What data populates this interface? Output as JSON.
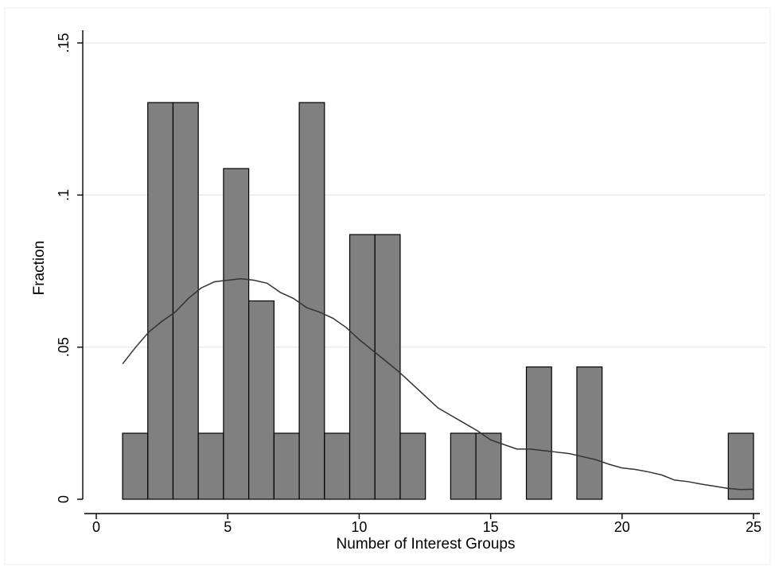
{
  "chart_data": {
    "type": "bar",
    "title": "",
    "xlabel": "Number of Interest Groups",
    "ylabel": "Fraction",
    "xlim": [
      0,
      25
    ],
    "ylim": [
      0,
      0.15
    ],
    "x_ticks": [
      {
        "value": 0,
        "label": "0"
      },
      {
        "value": 5,
        "label": "5"
      },
      {
        "value": 10,
        "label": "10"
      },
      {
        "value": 15,
        "label": "15"
      },
      {
        "value": 20,
        "label": "20"
      },
      {
        "value": 25,
        "label": "25"
      }
    ],
    "y_ticks": [
      {
        "value": 0,
        "label": "0"
      },
      {
        "value": 0.05,
        "label": ".05"
      },
      {
        "value": 0.1,
        "label": ".1"
      },
      {
        "value": 0.15,
        "label": ".15"
      }
    ],
    "grid": true,
    "bins": [
      {
        "x0": 1.0,
        "x1": 1.96,
        "value": 0.0217
      },
      {
        "x0": 1.96,
        "x1": 2.92,
        "value": 0.1304
      },
      {
        "x0": 2.92,
        "x1": 3.88,
        "value": 0.1304
      },
      {
        "x0": 3.88,
        "x1": 4.84,
        "value": 0.0217
      },
      {
        "x0": 4.84,
        "x1": 5.8,
        "value": 0.1087
      },
      {
        "x0": 5.8,
        "x1": 6.76,
        "value": 0.0652
      },
      {
        "x0": 6.76,
        "x1": 7.72,
        "value": 0.0217
      },
      {
        "x0": 7.72,
        "x1": 8.68,
        "value": 0.1304
      },
      {
        "x0": 8.68,
        "x1": 9.64,
        "value": 0.0217
      },
      {
        "x0": 9.64,
        "x1": 10.6,
        "value": 0.087
      },
      {
        "x0": 10.6,
        "x1": 11.56,
        "value": 0.087
      },
      {
        "x0": 11.56,
        "x1": 12.52,
        "value": 0.0217
      },
      {
        "x0": 13.48,
        "x1": 14.44,
        "value": 0.0217
      },
      {
        "x0": 14.44,
        "x1": 15.4,
        "value": 0.0217
      },
      {
        "x0": 16.36,
        "x1": 17.32,
        "value": 0.0435
      },
      {
        "x0": 18.28,
        "x1": 19.24,
        "value": 0.0435
      },
      {
        "x0": 24.04,
        "x1": 25.0,
        "value": 0.0217
      }
    ],
    "density_curve": {
      "x": [
        1,
        1.5,
        2,
        2.5,
        3,
        3.5,
        4,
        4.5,
        5,
        5.5,
        6,
        6.5,
        7,
        7.5,
        8,
        8.5,
        9,
        9.5,
        10,
        10.5,
        11,
        11.5,
        12,
        12.5,
        13,
        13.5,
        14,
        14.5,
        15,
        15.5,
        16,
        16.5,
        17,
        17.5,
        18,
        18.5,
        19,
        19.5,
        20,
        20.5,
        21,
        21.5,
        22,
        22.5,
        23,
        23.5,
        24,
        24.5,
        25
      ],
      "y": [
        0.0445,
        0.05,
        0.055,
        0.0585,
        0.0615,
        0.066,
        0.0695,
        0.0715,
        0.072,
        0.0725,
        0.072,
        0.071,
        0.068,
        0.066,
        0.063,
        0.0615,
        0.0595,
        0.0565,
        0.0525,
        0.049,
        0.0455,
        0.042,
        0.038,
        0.034,
        0.03,
        0.0275,
        0.025,
        0.0225,
        0.0195,
        0.018,
        0.0165,
        0.0165,
        0.016,
        0.0155,
        0.015,
        0.014,
        0.013,
        0.0115,
        0.0103,
        0.0098,
        0.009,
        0.008,
        0.0063,
        0.0058,
        0.005,
        0.0043,
        0.0036,
        0.0032,
        0.0033
      ]
    }
  },
  "colors": {
    "bar_fill": "#808080",
    "bar_stroke": "#000000",
    "density_line": "#333333",
    "grid": "#e6e6e6"
  }
}
